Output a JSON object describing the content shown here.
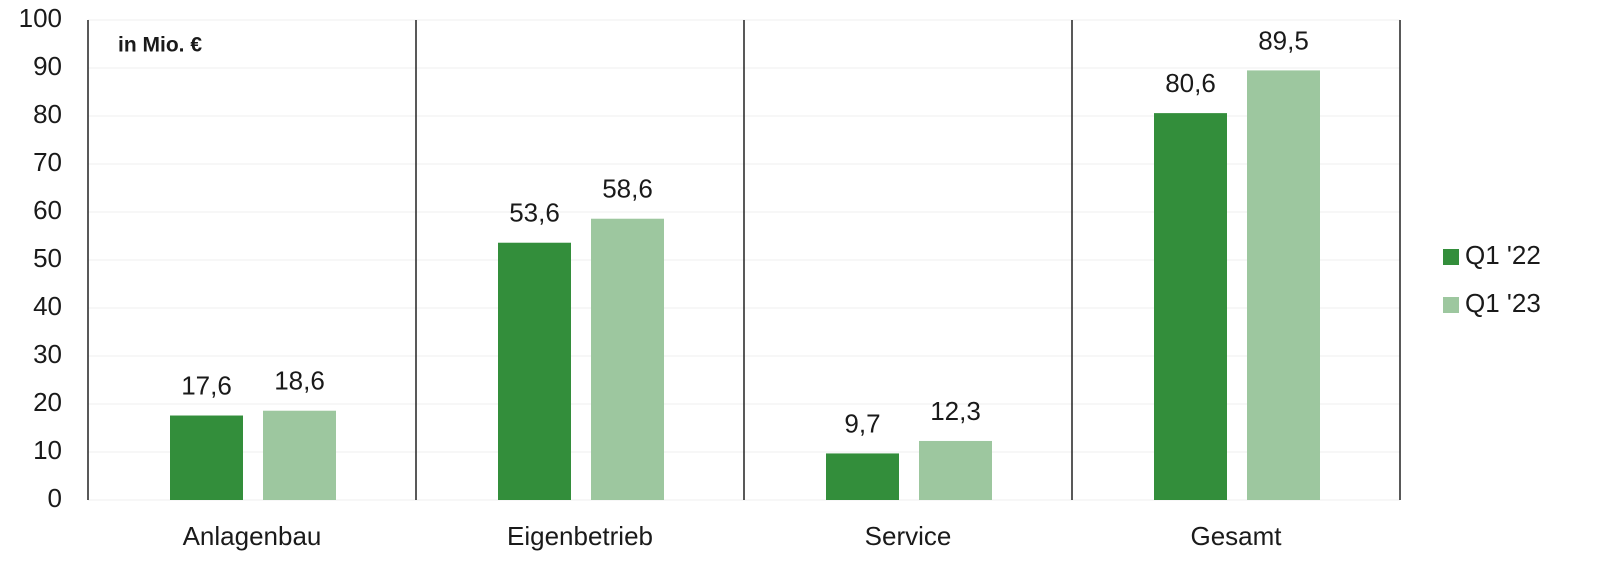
{
  "chart_data": {
    "type": "bar",
    "annotation": "in Mio. €",
    "categories": [
      "Anlagenbau",
      "Eigenbetrieb",
      "Service",
      "Gesamt"
    ],
    "series": [
      {
        "name": "Q1 '22",
        "color": "#338e3b",
        "values": [
          17.6,
          53.6,
          9.7,
          80.6
        ],
        "value_labels": [
          "17,6",
          "53,6",
          "9,7",
          "80,6"
        ]
      },
      {
        "name": "Q1 '23",
        "color": "#9dc79f",
        "values": [
          18.6,
          58.6,
          12.3,
          89.5
        ],
        "value_labels": [
          "18,6",
          "58,6",
          "12,3",
          "89,5"
        ]
      }
    ],
    "ylim": [
      0,
      100
    ],
    "yticks": [
      0,
      10,
      20,
      30,
      40,
      50,
      60,
      70,
      80,
      90,
      100
    ],
    "grid": true,
    "legend": "right"
  }
}
